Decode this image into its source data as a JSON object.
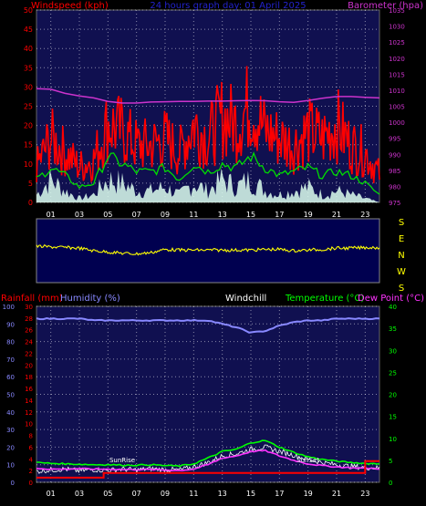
{
  "chart_data": [
    {
      "type": "line",
      "panel": "wind-barometer",
      "title": "24 hours graph day:  01 April 2025",
      "ylabel_left": "Windspeed (kph)",
      "ylabel_right": "Barometer (hpa)",
      "ylim_left": [
        0,
        50
      ],
      "ylim_right": [
        975,
        1035
      ],
      "yticks_left": [
        "0",
        "5",
        "10",
        "15",
        "20",
        "25",
        "30",
        "35",
        "40",
        "45",
        "50"
      ],
      "yticks_right": [
        "975",
        "980",
        "985",
        "990",
        "995",
        "1000",
        "1005",
        "1010",
        "1015",
        "1020",
        "1025",
        "1030",
        "1035"
      ],
      "xticks": [
        "01",
        "03",
        "05",
        "07",
        "09",
        "11",
        "13",
        "15",
        "17",
        "19",
        "21",
        "23"
      ],
      "grid": true,
      "colors": {
        "gust": "#ff0000",
        "avg": "#00dd00",
        "barometer": "#cc33cc",
        "wind_fill": "#ddffee",
        "plot_bg": "#101050"
      },
      "series": [
        {
          "name": "Barometer (hpa)",
          "x": [
            0,
            1,
            2,
            3,
            4,
            5,
            6,
            7,
            8,
            9,
            10,
            11,
            12,
            13,
            14,
            15,
            16,
            17,
            18,
            19,
            20,
            21,
            22,
            23,
            24
          ],
          "values": [
            1010.5,
            1010.3,
            1009.0,
            1008.2,
            1007.6,
            1006.5,
            1006.0,
            1006.0,
            1006.3,
            1006.4,
            1006.5,
            1006.5,
            1006.6,
            1006.6,
            1006.7,
            1006.8,
            1006.7,
            1006.4,
            1006.2,
            1006.8,
            1007.5,
            1008.0,
            1008.0,
            1007.8,
            1007.6
          ]
        },
        {
          "name": "Gust (kph)",
          "x": [
            0,
            1,
            2,
            3,
            4,
            5,
            6,
            7,
            8,
            9,
            10,
            11,
            12,
            13,
            14,
            15,
            16,
            17,
            18,
            19,
            20,
            21,
            22,
            23,
            24
          ],
          "values": [
            10,
            18,
            14,
            10,
            12,
            22,
            20,
            16,
            16,
            18,
            14,
            22,
            18,
            24,
            22,
            28,
            20,
            18,
            16,
            20,
            18,
            22,
            16,
            14,
            8
          ]
        },
        {
          "name": "Average (kph)",
          "x": [
            0,
            1,
            2,
            3,
            4,
            5,
            6,
            7,
            8,
            9,
            10,
            11,
            12,
            13,
            14,
            15,
            16,
            17,
            18,
            19,
            20,
            21,
            22,
            23,
            24
          ],
          "values": [
            6,
            9,
            7,
            4,
            5,
            12,
            10,
            8,
            8,
            9,
            6,
            10,
            8,
            10,
            9,
            12,
            9,
            7,
            8,
            9,
            7,
            8,
            7,
            5,
            2
          ]
        },
        {
          "name": "Wind (kph)",
          "x": [
            0,
            1,
            2,
            3,
            4,
            5,
            6,
            7,
            8,
            9,
            10,
            11,
            12,
            13,
            14,
            15,
            16,
            17,
            18,
            19,
            20,
            21,
            22,
            23,
            24
          ],
          "values": [
            2,
            6,
            3,
            1,
            2,
            6,
            5,
            3,
            3,
            4,
            2,
            5,
            3,
            6,
            4,
            6,
            3,
            2,
            3,
            4,
            2,
            3,
            2,
            1,
            0
          ]
        }
      ]
    },
    {
      "type": "line",
      "panel": "wind-direction",
      "direction_labels": [
        "S",
        "E",
        "N",
        "W",
        "S"
      ],
      "colors": {
        "direction": "#ffff00",
        "plot_bg": "#000050"
      },
      "series": [
        {
          "name": "Wind direction",
          "x": [
            0,
            1,
            2,
            3,
            4,
            5,
            6,
            7,
            8,
            9,
            10,
            11,
            12,
            13,
            14,
            15,
            16,
            17,
            18,
            19,
            20,
            21,
            22,
            23,
            24
          ],
          "values": [
            0.43,
            0.44,
            0.45,
            0.46,
            0.5,
            0.52,
            0.54,
            0.55,
            0.53,
            0.48,
            0.49,
            0.49,
            0.49,
            0.49,
            0.49,
            0.49,
            0.48,
            0.48,
            0.5,
            0.49,
            0.48,
            0.46,
            0.46,
            0.45,
            0.45
          ]
        }
      ]
    },
    {
      "type": "line",
      "panel": "rain-humidity-temperature",
      "labels": {
        "rainfall": "Rainfall (mm)",
        "humidity": "Humidity (%)",
        "windchill": "Windchill",
        "temperature": "Temperature (°C)",
        "dewpoint": "Dew Point (°C)"
      },
      "ylim_humidity": [
        0,
        100
      ],
      "ylim_rainfall": [
        0,
        30
      ],
      "ylim_temperature": [
        0,
        40
      ],
      "yticks_humidity": [
        "0",
        "10",
        "20",
        "30",
        "40",
        "50",
        "60",
        "70",
        "80",
        "90",
        "100"
      ],
      "yticks_rainfall": [
        "0",
        "2",
        "4",
        "6",
        "8",
        "10",
        "12",
        "14",
        "16",
        "18",
        "20",
        "22",
        "24",
        "26",
        "28",
        "30"
      ],
      "yticks_temperature": [
        "0",
        "5",
        "10",
        "15",
        "20",
        "25",
        "30",
        "35",
        "40"
      ],
      "xticks": [
        "01",
        "03",
        "05",
        "07",
        "09",
        "11",
        "13",
        "15",
        "17",
        "19",
        "21",
        "23"
      ],
      "annotations": [
        "SunRise",
        "SunSet"
      ],
      "grid": true,
      "colors": {
        "humidity": "#8888ff",
        "temperature": "#00ff00",
        "dewpoint": "#ff33ff",
        "windchill": "#ffffff",
        "rainfall": "#ff0000",
        "plot_bg": "#101050"
      },
      "series": [
        {
          "name": "Humidity (%)",
          "x": [
            0,
            1,
            2,
            3,
            4,
            5,
            6,
            7,
            8,
            9,
            10,
            11,
            12,
            13,
            14,
            15,
            16,
            17,
            18,
            19,
            20,
            21,
            22,
            23,
            24
          ],
          "values": [
            93,
            93,
            93,
            93,
            92,
            92,
            92,
            92,
            92,
            92,
            92,
            92,
            92,
            90,
            88,
            85,
            86,
            89,
            91,
            92,
            92,
            93,
            93,
            93,
            93
          ]
        },
        {
          "name": "Temperature (°C)",
          "x": [
            0,
            1,
            2,
            3,
            4,
            5,
            6,
            7,
            8,
            9,
            10,
            11,
            12,
            13,
            14,
            15,
            16,
            17,
            18,
            19,
            20,
            21,
            22,
            23,
            24
          ],
          "values": [
            4.5,
            4.3,
            4.2,
            4.1,
            4.0,
            4.0,
            3.9,
            3.9,
            4.0,
            3.8,
            3.7,
            4.2,
            5.5,
            7.0,
            7.5,
            9.0,
            9.5,
            8.0,
            6.8,
            5.8,
            5.2,
            4.8,
            4.5,
            4.3,
            4.2
          ]
        },
        {
          "name": "Dew Point (°C)",
          "x": [
            0,
            1,
            2,
            3,
            4,
            5,
            6,
            7,
            8,
            9,
            10,
            11,
            12,
            13,
            14,
            15,
            16,
            17,
            18,
            19,
            20,
            21,
            22,
            23,
            24
          ],
          "values": [
            3.2,
            3.0,
            3.0,
            3.1,
            3.0,
            3.0,
            2.9,
            2.9,
            2.9,
            2.8,
            2.7,
            3.0,
            4.0,
            5.5,
            6.0,
            7.0,
            7.2,
            6.0,
            5.0,
            4.2,
            3.8,
            3.5,
            3.3,
            3.2,
            3.1
          ]
        },
        {
          "name": "Windchill",
          "x": [
            0,
            1,
            2,
            3,
            4,
            5,
            6,
            7,
            8,
            9,
            10,
            11,
            12,
            13,
            14,
            15,
            16,
            17,
            18,
            19,
            20,
            21,
            22,
            23,
            24
          ],
          "values": [
            2.5,
            2.8,
            3.0,
            2.6,
            2.9,
            2.7,
            3.0,
            2.8,
            3.1,
            2.9,
            2.8,
            3.5,
            4.5,
            6.0,
            6.5,
            7.5,
            8.0,
            7.0,
            6.2,
            5.2,
            4.5,
            4.0,
            3.6,
            3.4,
            3.2
          ]
        },
        {
          "name": "Rainfall (mm)",
          "x": [
            0,
            4.7,
            4.7,
            23.0,
            23.0,
            24
          ],
          "values": [
            0.8,
            0.8,
            1.6,
            1.6,
            3.6,
            3.6
          ]
        }
      ]
    }
  ]
}
